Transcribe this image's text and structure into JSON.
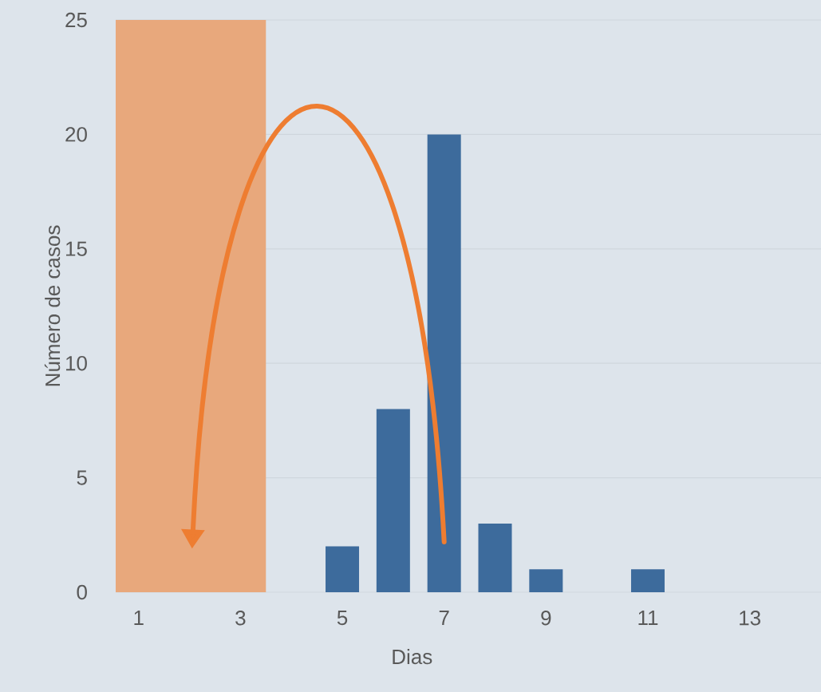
{
  "chart_data": {
    "type": "bar",
    "xlabel": "Dias",
    "ylabel": "Número de casos",
    "x": [
      1,
      2,
      3,
      4,
      5,
      6,
      7,
      8,
      9,
      10,
      11,
      12,
      13,
      14
    ],
    "values": [
      0,
      0,
      0,
      0,
      2,
      8,
      20,
      3,
      1,
      0,
      1,
      0,
      0,
      0
    ],
    "color": "#3d6b9c",
    "xlim": [
      0.55,
      14.4
    ],
    "xticks": [
      1,
      3,
      5,
      7,
      9,
      11,
      13
    ],
    "ylim": [
      0,
      25
    ],
    "yticks": [
      0,
      5,
      10,
      15,
      20,
      25
    ],
    "grid": "y",
    "bands": [
      {
        "axis": "x",
        "from": 0.55,
        "to": 3.5,
        "color": "#e8a87c"
      }
    ]
  }
}
